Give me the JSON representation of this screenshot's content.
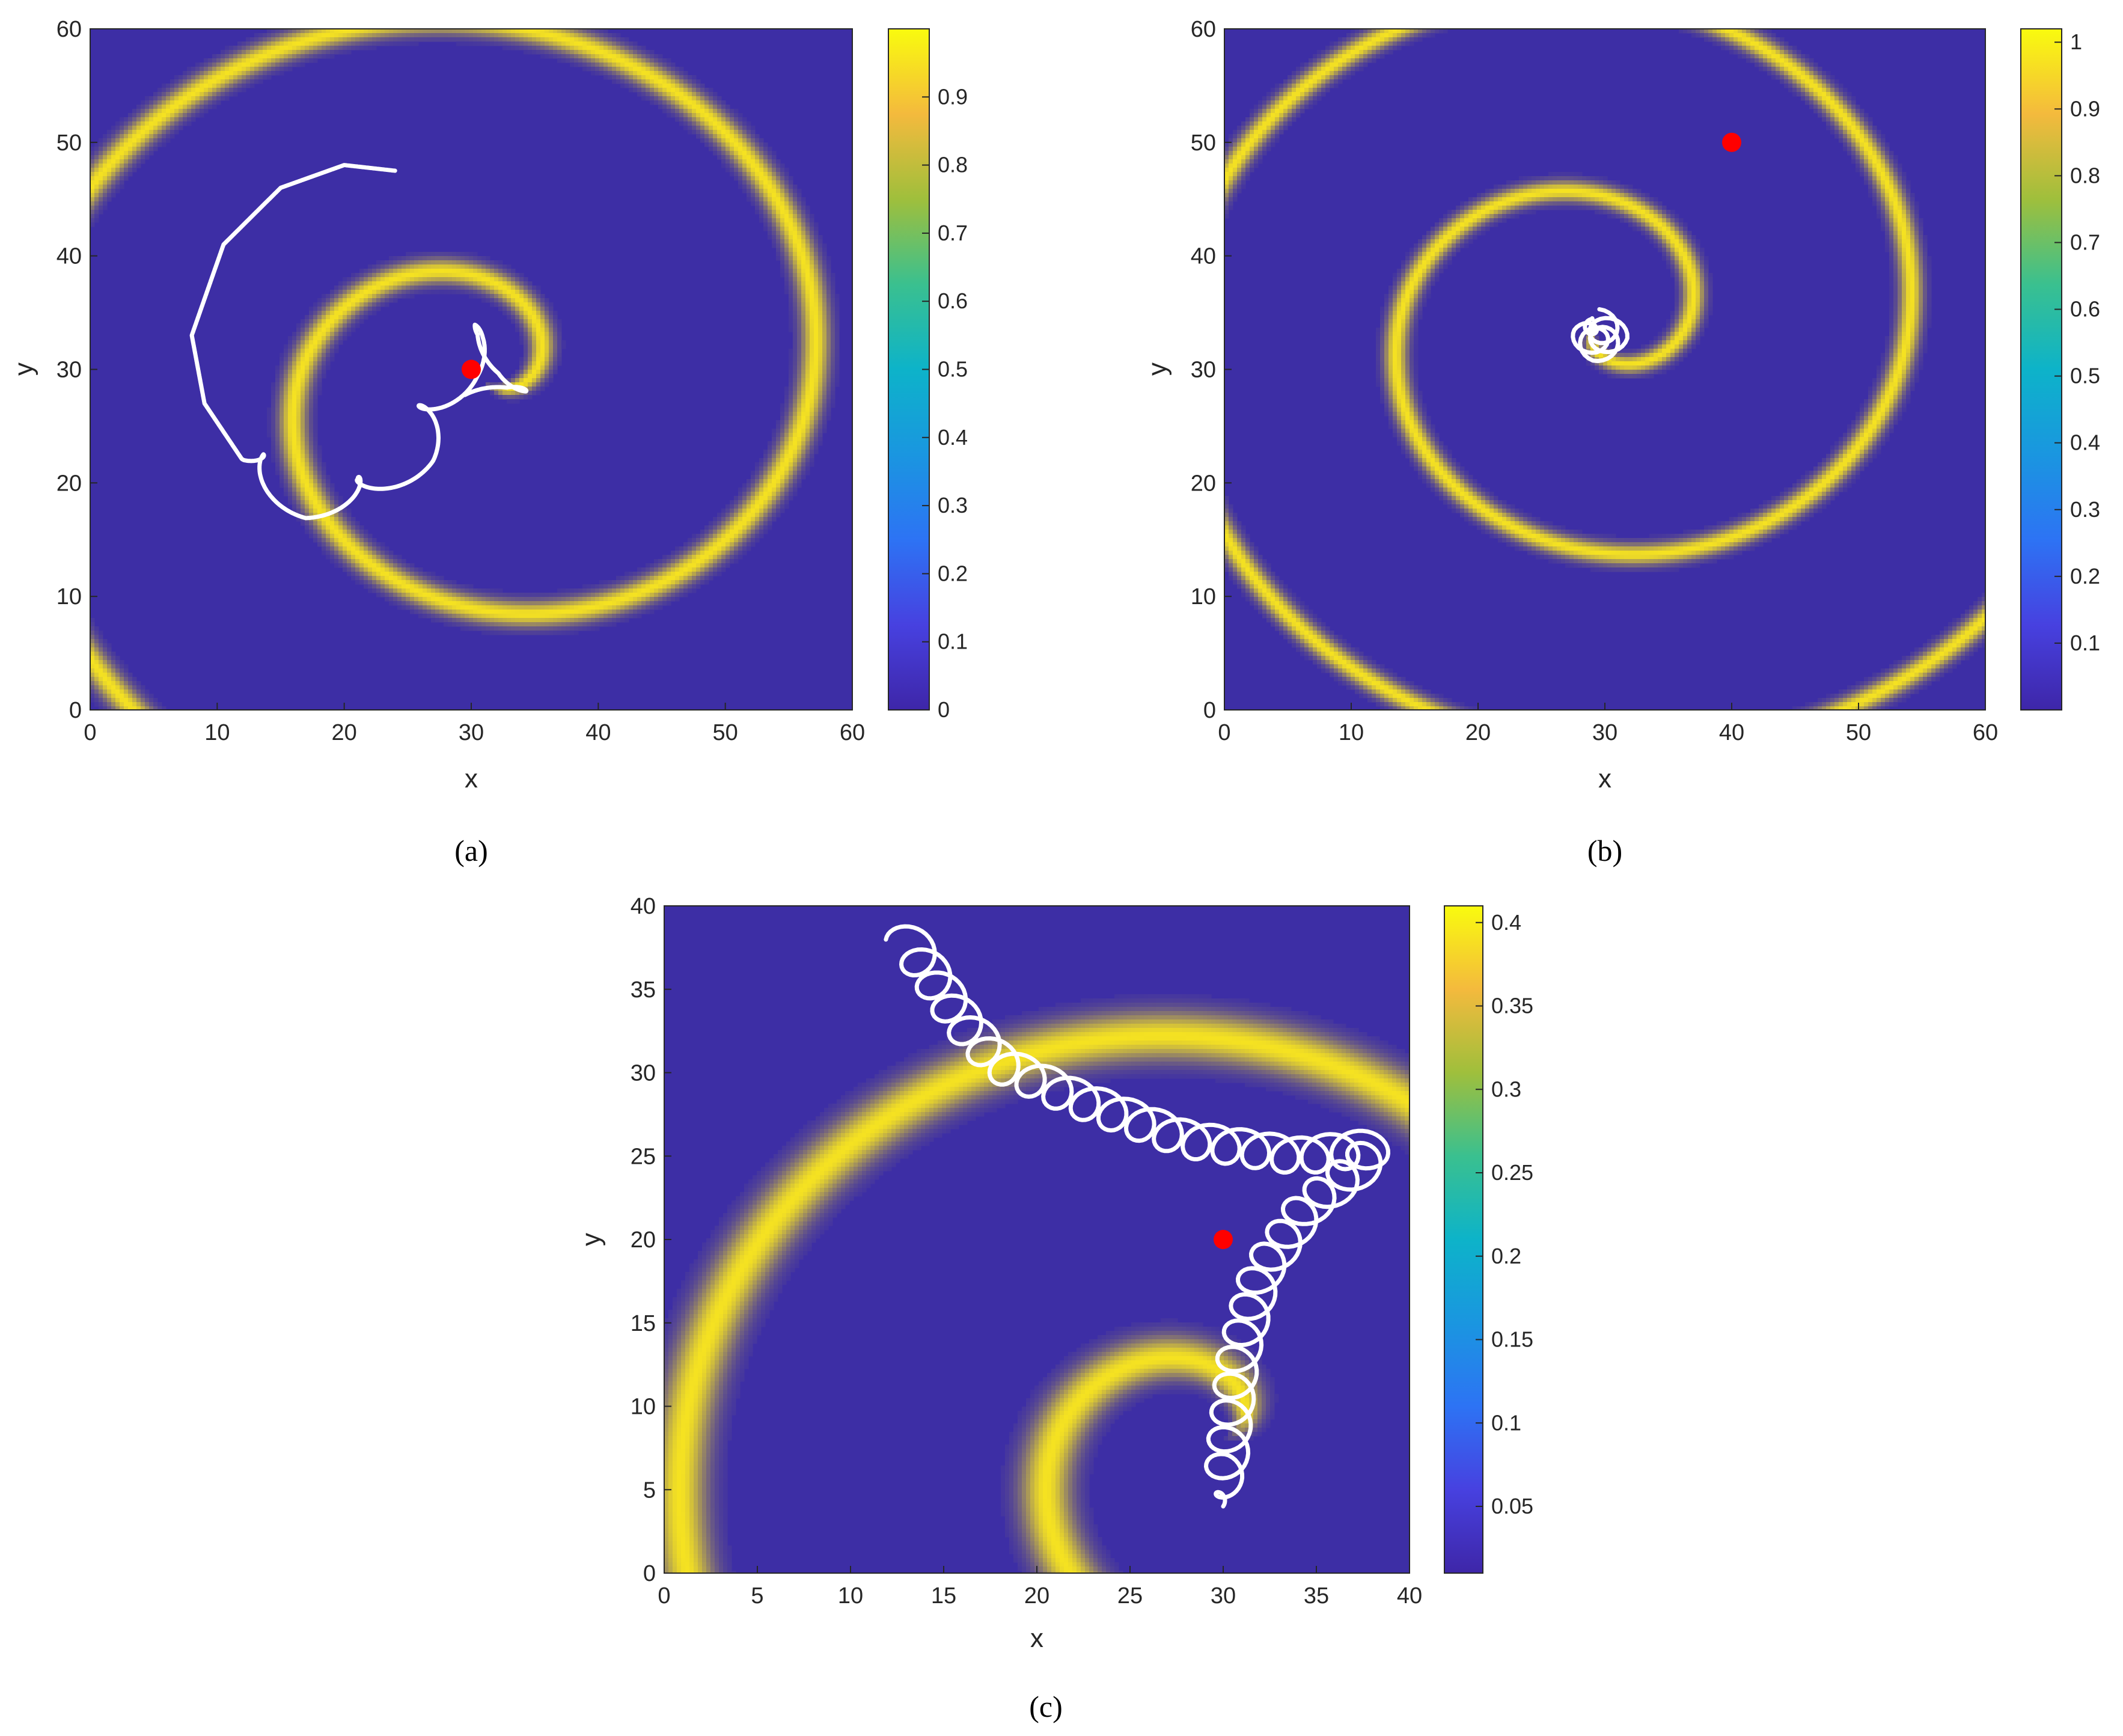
{
  "chart_data": [
    {
      "type": "heatmap",
      "panel_label": "(a)",
      "xlabel": "x",
      "ylabel": "y",
      "xlim": [
        0,
        60
      ],
      "ylim": [
        0,
        60
      ],
      "xticks": [
        0,
        10,
        20,
        30,
        40,
        50,
        60
      ],
      "yticks": [
        0,
        10,
        20,
        30,
        40,
        50,
        60
      ],
      "colormap": "parula",
      "colorbar": {
        "range": [
          0,
          1.0
        ],
        "ticks": [
          0,
          0.1,
          0.2,
          0.3,
          0.4,
          0.5,
          0.6,
          0.7,
          0.8,
          0.9
        ]
      },
      "background_color": "#3d2ea5",
      "wave_color": "#f5e221",
      "trajectory_color": "#ffffff",
      "marker_color": "#ff0000",
      "wave": {
        "kind": "spiral",
        "center": [
          31,
          29
        ],
        "pitch": 22.5,
        "phase_offset": 0.35,
        "direction": -1,
        "band_width": 1.1
      },
      "trajectory": {
        "drift_path": [
          [
            24,
            47.5
          ],
          [
            20,
            48
          ],
          [
            15,
            46
          ],
          [
            10.5,
            41
          ],
          [
            8,
            33
          ],
          [
            9,
            27
          ],
          [
            12,
            22
          ],
          [
            17,
            18.5
          ],
          [
            22,
            19
          ],
          [
            25.5,
            22.5
          ],
          [
            27.5,
            26.5
          ],
          [
            29,
            30
          ],
          [
            30,
            31.5
          ],
          [
            31,
            32.5
          ],
          [
            32,
            32.5
          ],
          [
            33,
            31
          ],
          [
            33,
            29
          ],
          [
            32,
            27
          ],
          [
            30.5,
            26.5
          ]
        ],
        "loop_radius": 1.6,
        "loops_per_unit": 0.12,
        "loop_start_fraction": 0.5
      },
      "marker": {
        "x": 30,
        "y": 30
      }
    },
    {
      "type": "heatmap",
      "panel_label": "(b)",
      "xlabel": "x",
      "ylabel": "y",
      "xlim": [
        0,
        60
      ],
      "ylim": [
        0,
        60
      ],
      "xticks": [
        0,
        10,
        20,
        30,
        40,
        50,
        60
      ],
      "yticks": [
        0,
        10,
        20,
        30,
        40,
        50,
        60
      ],
      "colormap": "parula",
      "colorbar": {
        "range": [
          0,
          1.02
        ],
        "ticks": [
          0.1,
          0.2,
          0.3,
          0.4,
          0.5,
          0.6,
          0.7,
          0.8,
          0.9,
          1
        ]
      },
      "background_color": "#3d2ea5",
      "wave_color": "#f5e221",
      "trajectory_color": "#ffffff",
      "marker_color": "#ff0000",
      "wave": {
        "kind": "spiral",
        "center": [
          29.5,
          34
        ],
        "pitch": 17.5,
        "phase_offset": 0.1,
        "direction": -1,
        "band_width": 0.9
      },
      "trajectory": {
        "drift_path": [
          [
            29,
            34.5
          ],
          [
            28.5,
            33
          ],
          [
            29.5,
            32
          ],
          [
            30.5,
            33
          ],
          [
            29.5,
            34
          ]
        ],
        "loop_radius": 1.3,
        "loops_per_unit": 0.9,
        "loop_start_fraction": 0
      },
      "marker": {
        "x": 40,
        "y": 50
      }
    },
    {
      "type": "heatmap",
      "panel_label": "(c)",
      "xlabel": "x",
      "ylabel": "y",
      "xlim": [
        0,
        40
      ],
      "ylim": [
        0,
        40
      ],
      "xticks": [
        0,
        5,
        10,
        15,
        20,
        25,
        30,
        35,
        40
      ],
      "yticks": [
        0,
        5,
        10,
        15,
        20,
        25,
        30,
        35,
        40
      ],
      "colormap": "parula",
      "colorbar": {
        "range": [
          0.01,
          0.41
        ],
        "ticks": [
          0.05,
          0.1,
          0.15,
          0.2,
          0.25,
          0.3,
          0.35,
          0.4
        ]
      },
      "background_color": "#3d2ea5",
      "wave_color": "#f5e221",
      "trajectory_color": "#ffffff",
      "marker_color": "#ff0000",
      "wave": {
        "kind": "spiral",
        "center": [
          30,
          8
        ],
        "pitch": 20,
        "phase_offset": 0.55,
        "direction": -1,
        "band_width": 1.4
      },
      "trajectory": {
        "drift_path": [
          [
            30,
            4
          ],
          [
            30.3,
            8
          ],
          [
            30.8,
            13
          ],
          [
            32,
            18
          ],
          [
            34.5,
            22
          ],
          [
            37.5,
            24.5
          ],
          [
            38,
            25.5
          ],
          [
            34,
            25
          ],
          [
            28,
            26
          ],
          [
            22,
            28.5
          ],
          [
            18,
            30.5
          ],
          [
            16,
            33
          ],
          [
            14.5,
            35.5
          ],
          [
            13,
            38
          ]
        ],
        "loop_radius": 1.1,
        "loops_per_unit": 0.62,
        "loop_start_fraction": 0
      },
      "marker": {
        "x": 30,
        "y": 20
      }
    }
  ]
}
